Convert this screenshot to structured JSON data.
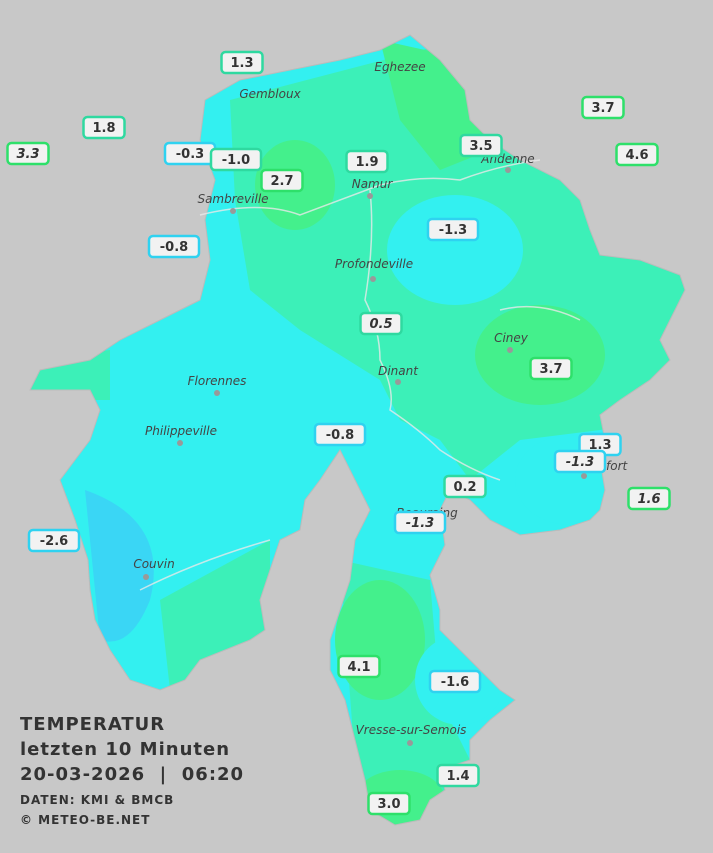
{
  "legend": {
    "title": "TEMPERATUR",
    "period": "letzten 10 Minuten",
    "timestamp": "20-03-2026  |  06:20",
    "source": "DATEN: KMI & BMCB",
    "copyright": "© METEO-BE.NET"
  },
  "cities": [
    {
      "name": "Eghezee"
    },
    {
      "name": "Gembloux"
    },
    {
      "name": "Andenne"
    },
    {
      "name": "Namur"
    },
    {
      "name": "Sambreville"
    },
    {
      "name": "Profondeville"
    },
    {
      "name": "Ciney"
    },
    {
      "name": "Dinant"
    },
    {
      "name": "Florennes"
    },
    {
      "name": "Philippeville"
    },
    {
      "name": "Rochefort"
    },
    {
      "name": "Beauraing"
    },
    {
      "name": "Couvin"
    },
    {
      "name": "Vresse-sur-Semois"
    }
  ],
  "stations": [
    {
      "label": "1.3"
    },
    {
      "label": "3.3"
    },
    {
      "label": "1.8"
    },
    {
      "label": "-0.3"
    },
    {
      "label": "-1.0"
    },
    {
      "label": "2.7"
    },
    {
      "label": "1.9"
    },
    {
      "label": "3.5"
    },
    {
      "label": "3.7"
    },
    {
      "label": "4.6"
    },
    {
      "label": "-0.8"
    },
    {
      "label": "-1.3"
    },
    {
      "label": "0.5"
    },
    {
      "label": "3.7"
    },
    {
      "label": "-0.8"
    },
    {
      "label": "1.3"
    },
    {
      "label": "-1.3"
    },
    {
      "label": "1.6"
    },
    {
      "label": "0.2"
    },
    {
      "label": "-1.3"
    },
    {
      "label": "-2.6"
    },
    {
      "label": "4.1"
    },
    {
      "label": "-1.6"
    },
    {
      "label": "1.4"
    },
    {
      "label": "3.0"
    }
  ]
}
